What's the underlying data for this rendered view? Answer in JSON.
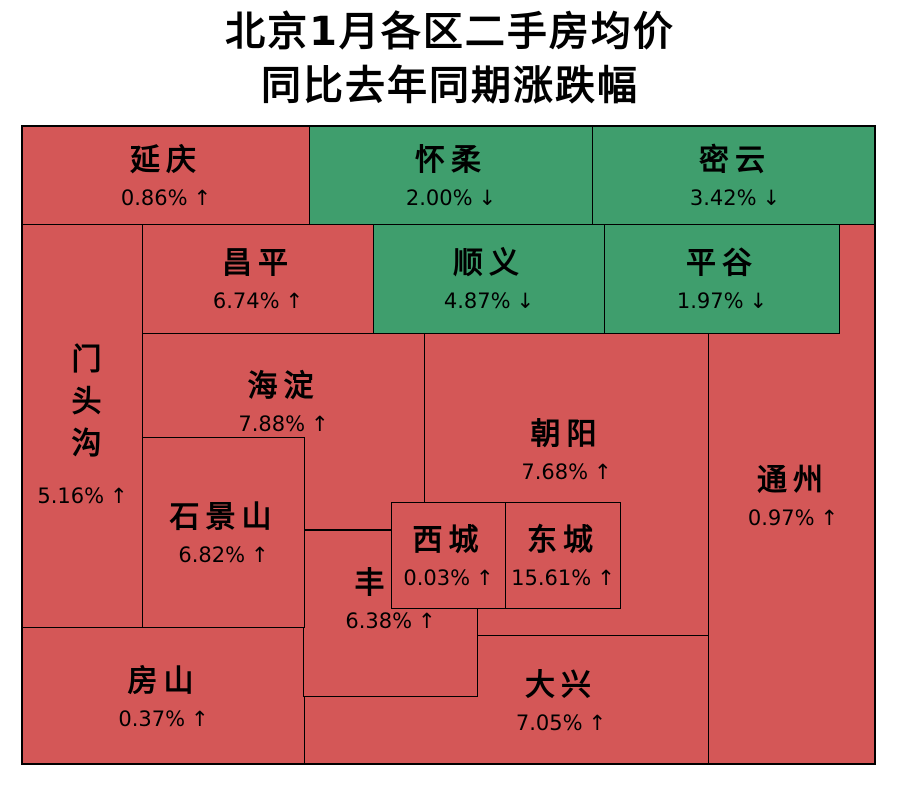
{
  "title_line1": "北京1月各区二手房均价",
  "title_line2": "同比去年同期涨跌幅",
  "colors": {
    "up": "#d45757",
    "down": "#3f9e6d",
    "border": "#000000"
  },
  "chart_data": {
    "type": "treemap",
    "title": "北京1月各区二手房均价同比去年同期涨跌幅",
    "unit": "%",
    "regions": [
      {
        "id": "yanqing",
        "name": "延庆",
        "change": "0.86%",
        "direction": "up",
        "arrow": "↑"
      },
      {
        "id": "huairou",
        "name": "怀柔",
        "change": "2.00%",
        "direction": "down",
        "arrow": "↓"
      },
      {
        "id": "miyun",
        "name": "密云",
        "change": "3.42%",
        "direction": "down",
        "arrow": "↓"
      },
      {
        "id": "changping",
        "name": "昌平",
        "change": "6.74%",
        "direction": "up",
        "arrow": "↑"
      },
      {
        "id": "shunyi",
        "name": "顺义",
        "change": "4.87%",
        "direction": "down",
        "arrow": "↓"
      },
      {
        "id": "pinggu",
        "name": "平谷",
        "change": "1.97%",
        "direction": "down",
        "arrow": "↓"
      },
      {
        "id": "mentougou",
        "name": "门头沟",
        "change": "5.16%",
        "direction": "up",
        "arrow": "↑"
      },
      {
        "id": "haidian",
        "name": "海淀",
        "change": "7.88%",
        "direction": "up",
        "arrow": "↑"
      },
      {
        "id": "chaoyang",
        "name": "朝阳",
        "change": "7.68%",
        "direction": "up",
        "arrow": "↑"
      },
      {
        "id": "tongzhou",
        "name": "通州",
        "change": "0.97%",
        "direction": "up",
        "arrow": "↑"
      },
      {
        "id": "shijingshan",
        "name": "石景山",
        "change": "6.82%",
        "direction": "up",
        "arrow": "↑"
      },
      {
        "id": "xicheng",
        "name": "西城",
        "change": "0.03%",
        "direction": "up",
        "arrow": "↑"
      },
      {
        "id": "dongcheng",
        "name": "东城",
        "change": "15.61%",
        "direction": "up",
        "arrow": "↑"
      },
      {
        "id": "fengtai",
        "name": "丰台",
        "change": "6.38%",
        "direction": "up",
        "arrow": "↑"
      },
      {
        "id": "fangshan",
        "name": "房山",
        "change": "0.37%",
        "direction": "up",
        "arrow": "↑"
      },
      {
        "id": "daxing",
        "name": "大兴",
        "change": "7.05%",
        "direction": "up",
        "arrow": "↑"
      }
    ]
  }
}
